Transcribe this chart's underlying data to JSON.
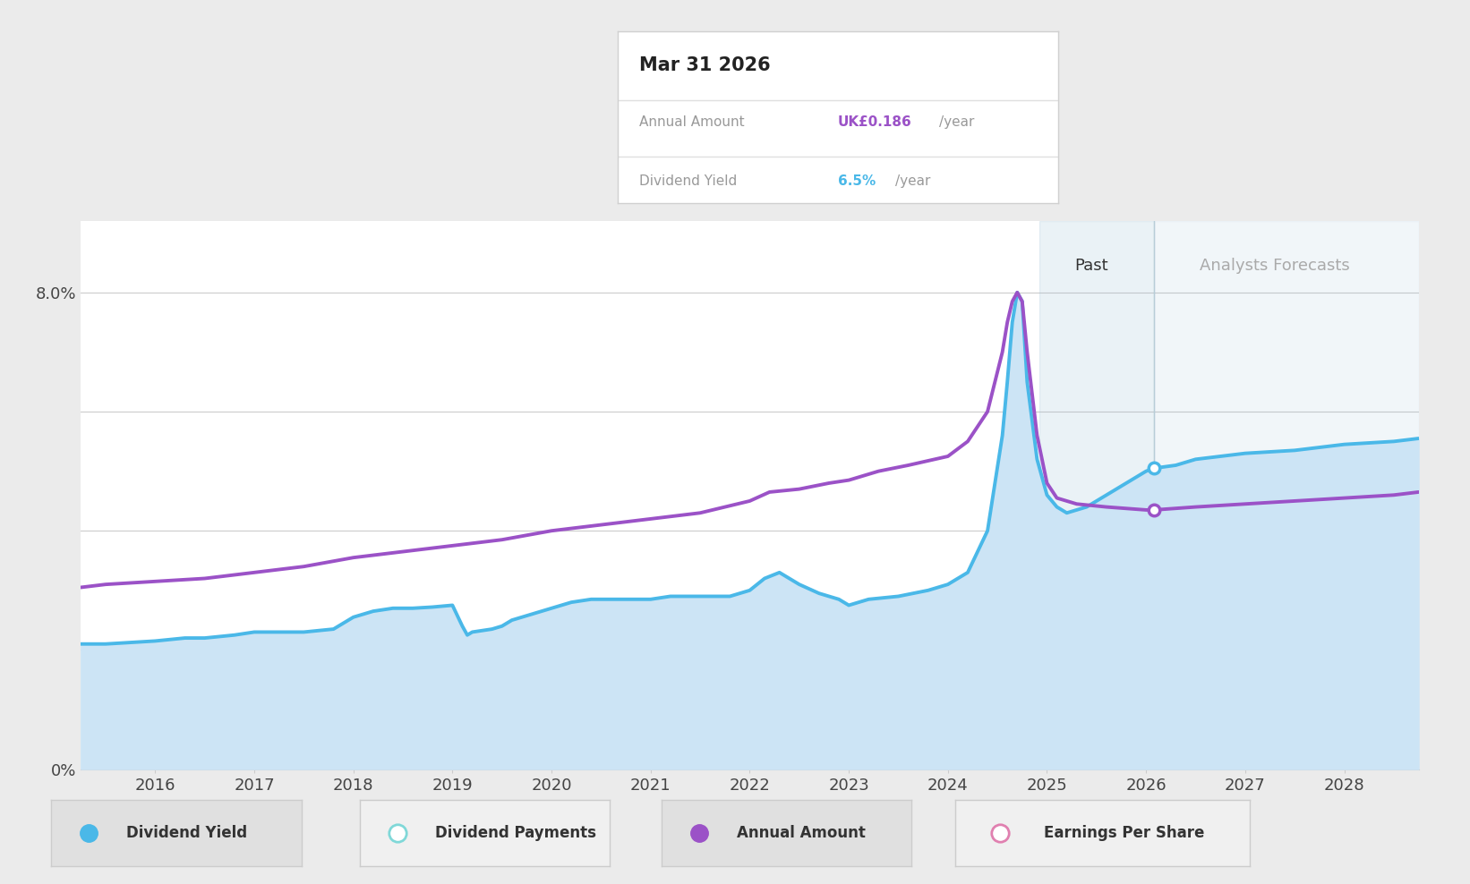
{
  "bg_color": "#ebebeb",
  "plot_bg_color": "#ffffff",
  "x_min": 2015.25,
  "x_max": 2028.75,
  "y_min": 0.0,
  "y_max": 9.2,
  "x_ticks": [
    2016,
    2017,
    2018,
    2019,
    2020,
    2021,
    2022,
    2023,
    2024,
    2025,
    2026,
    2027,
    2028
  ],
  "past_region_start": 2024.92,
  "past_region_end": 2026.08,
  "forecast_region_start": 2026.08,
  "forecast_region_end": 2028.75,
  "div_yield_color": "#4ab8e8",
  "div_yield_fill_color": "#cce4f5",
  "annual_amount_color": "#9b52c7",
  "tooltip_date": "Mar 31 2026",
  "tooltip_annual_amount_label": "Annual Amount",
  "tooltip_annual_amount_value": "UK£0.186",
  "tooltip_annual_amount_unit": "/year",
  "tooltip_yield_label": "Dividend Yield",
  "tooltip_yield_value": "6.5%",
  "tooltip_yield_unit": "/year",
  "past_label": "Past",
  "forecast_label": "Analysts Forecasts",
  "div_yield_x": [
    2015.25,
    2015.5,
    2016.0,
    2016.3,
    2016.5,
    2016.8,
    2017.0,
    2017.3,
    2017.5,
    2017.8,
    2018.0,
    2018.2,
    2018.4,
    2018.6,
    2018.8,
    2019.0,
    2019.1,
    2019.15,
    2019.2,
    2019.4,
    2019.5,
    2019.6,
    2019.8,
    2020.0,
    2020.2,
    2020.4,
    2020.6,
    2020.8,
    2021.0,
    2021.2,
    2021.4,
    2021.6,
    2021.8,
    2022.0,
    2022.15,
    2022.3,
    2022.5,
    2022.7,
    2022.9,
    2023.0,
    2023.2,
    2023.5,
    2023.8,
    2024.0,
    2024.2,
    2024.4,
    2024.55,
    2024.6,
    2024.65,
    2024.7,
    2024.75,
    2024.8,
    2024.9,
    2025.0,
    2025.1,
    2025.2,
    2025.4,
    2025.6,
    2025.8,
    2025.9,
    2026.0,
    2026.08,
    2026.3,
    2026.5,
    2027.0,
    2027.5,
    2028.0,
    2028.5,
    2028.75
  ],
  "div_yield_y": [
    2.1,
    2.1,
    2.15,
    2.2,
    2.2,
    2.25,
    2.3,
    2.3,
    2.3,
    2.35,
    2.55,
    2.65,
    2.7,
    2.7,
    2.72,
    2.75,
    2.4,
    2.25,
    2.3,
    2.35,
    2.4,
    2.5,
    2.6,
    2.7,
    2.8,
    2.85,
    2.85,
    2.85,
    2.85,
    2.9,
    2.9,
    2.9,
    2.9,
    3.0,
    3.2,
    3.3,
    3.1,
    2.95,
    2.85,
    2.75,
    2.85,
    2.9,
    3.0,
    3.1,
    3.3,
    4.0,
    5.6,
    6.5,
    7.5,
    8.0,
    7.85,
    6.5,
    5.2,
    4.6,
    4.4,
    4.3,
    4.4,
    4.6,
    4.8,
    4.9,
    5.0,
    5.05,
    5.1,
    5.2,
    5.3,
    5.35,
    5.45,
    5.5,
    5.55
  ],
  "annual_amt_x": [
    2015.25,
    2015.5,
    2016.0,
    2016.5,
    2017.0,
    2017.5,
    2018.0,
    2018.5,
    2019.0,
    2019.5,
    2020.0,
    2020.5,
    2021.0,
    2021.5,
    2022.0,
    2022.2,
    2022.5,
    2022.8,
    2023.0,
    2023.3,
    2023.6,
    2024.0,
    2024.2,
    2024.4,
    2024.55,
    2024.6,
    2024.65,
    2024.7,
    2024.75,
    2024.8,
    2024.9,
    2025.0,
    2025.1,
    2025.3,
    2025.6,
    2026.0,
    2026.08,
    2026.5,
    2027.0,
    2027.5,
    2028.0,
    2028.5,
    2028.75
  ],
  "annual_amt_y": [
    3.05,
    3.1,
    3.15,
    3.2,
    3.3,
    3.4,
    3.55,
    3.65,
    3.75,
    3.85,
    4.0,
    4.1,
    4.2,
    4.3,
    4.5,
    4.65,
    4.7,
    4.8,
    4.85,
    5.0,
    5.1,
    5.25,
    5.5,
    6.0,
    7.0,
    7.5,
    7.85,
    8.0,
    7.85,
    7.0,
    5.6,
    4.8,
    4.55,
    4.45,
    4.4,
    4.35,
    4.35,
    4.4,
    4.45,
    4.5,
    4.55,
    4.6,
    4.65
  ],
  "marker_blue_x": 2026.08,
  "marker_blue_y": 5.05,
  "marker_purple_x": 2026.08,
  "marker_purple_y": 4.35,
  "legend_items": [
    {
      "label": "Dividend Yield",
      "color": "#4ab8e8",
      "filled": true
    },
    {
      "label": "Dividend Payments",
      "color": "#80d8d8",
      "filled": false
    },
    {
      "label": "Annual Amount",
      "color": "#9b52c7",
      "filled": true
    },
    {
      "label": "Earnings Per Share",
      "color": "#e080b0",
      "filled": false
    }
  ]
}
